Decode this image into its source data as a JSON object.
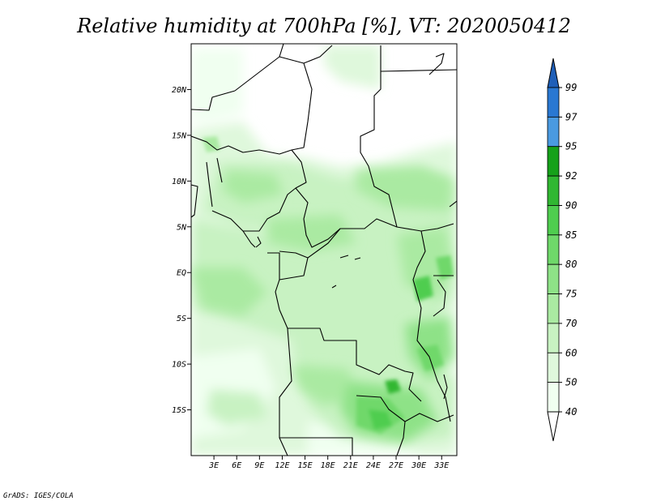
{
  "title": "Relative humidity at 700hPa [%], VT: 2020050412",
  "credit": "GrADS: IGES/COLA",
  "map": {
    "lat_labels": [
      "20N",
      "15N",
      "10N",
      "5N",
      "EQ",
      "5S",
      "10S",
      "15S"
    ],
    "lat_values": [
      20,
      15,
      10,
      5,
      0,
      -5,
      -10,
      -15
    ],
    "lon_labels": [
      "3E",
      "6E",
      "9E",
      "12E",
      "15E",
      "18E",
      "21E",
      "24E",
      "27E",
      "30E",
      "33E"
    ],
    "lon_values": [
      3,
      6,
      9,
      12,
      15,
      18,
      21,
      24,
      27,
      30,
      33
    ],
    "lon_range": [
      0,
      35
    ],
    "lat_range": [
      -20,
      25
    ]
  },
  "colorbar": {
    "labels": [
      "99",
      "97",
      "95",
      "92",
      "90",
      "85",
      "80",
      "75",
      "70",
      "60",
      "50",
      "40"
    ],
    "levels": [
      40,
      50,
      60,
      70,
      75,
      80,
      85,
      90,
      92,
      95,
      97,
      99
    ],
    "colors": [
      "#f0fff0",
      "#dff8dc",
      "#c8f2c2",
      "#aaeaa2",
      "#8ee287",
      "#6fd86a",
      "#4fcd4f",
      "#31b732",
      "#16a11a",
      "#4a9ae0",
      "#2a78d2",
      "#1f5fb8"
    ]
  }
}
